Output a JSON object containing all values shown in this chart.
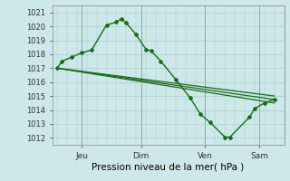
{
  "xlabel": "Pression niveau de la mer( hPa )",
  "background_color": "#cce8e8",
  "grid_color": "#aacccc",
  "line_color": "#1a6b1a",
  "marker_color": "#1a6b1a",
  "ylim": [
    1011.5,
    1021.5
  ],
  "yticks": [
    1012,
    1013,
    1014,
    1015,
    1016,
    1017,
    1018,
    1019,
    1020,
    1021
  ],
  "series1_x": [
    0,
    0.5,
    1.5,
    2.5,
    3.5,
    5.0,
    6.0,
    6.5,
    7.0,
    8.0,
    9.0,
    9.5,
    10.5,
    12.0,
    13.5,
    14.5,
    15.5,
    17.0,
    17.5,
    19.5,
    20.0,
    21.0,
    22.0
  ],
  "series1_y": [
    1017.0,
    1017.5,
    1017.8,
    1018.1,
    1018.3,
    1020.1,
    1020.3,
    1020.55,
    1020.25,
    1019.4,
    1018.35,
    1018.25,
    1017.5,
    1016.2,
    1014.85,
    1013.7,
    1013.1,
    1012.05,
    1012.05,
    1013.5,
    1014.1,
    1014.5,
    1014.75
  ],
  "series2_x": [
    0,
    22
  ],
  "series2_y": [
    1017.0,
    1015.0
  ],
  "series3_x": [
    0,
    22
  ],
  "series3_y": [
    1017.0,
    1014.75
  ],
  "series4_x": [
    0,
    22
  ],
  "series4_y": [
    1017.0,
    1014.5
  ],
  "xtick_positions": [
    2.5,
    8.5,
    15.0,
    20.5
  ],
  "xtick_labels": [
    "Jeu",
    "Dim",
    "Ven",
    "Sam"
  ],
  "xvlines": [
    2.5,
    8.5,
    15.0,
    20.5
  ],
  "xlim": [
    -0.5,
    23.0
  ]
}
